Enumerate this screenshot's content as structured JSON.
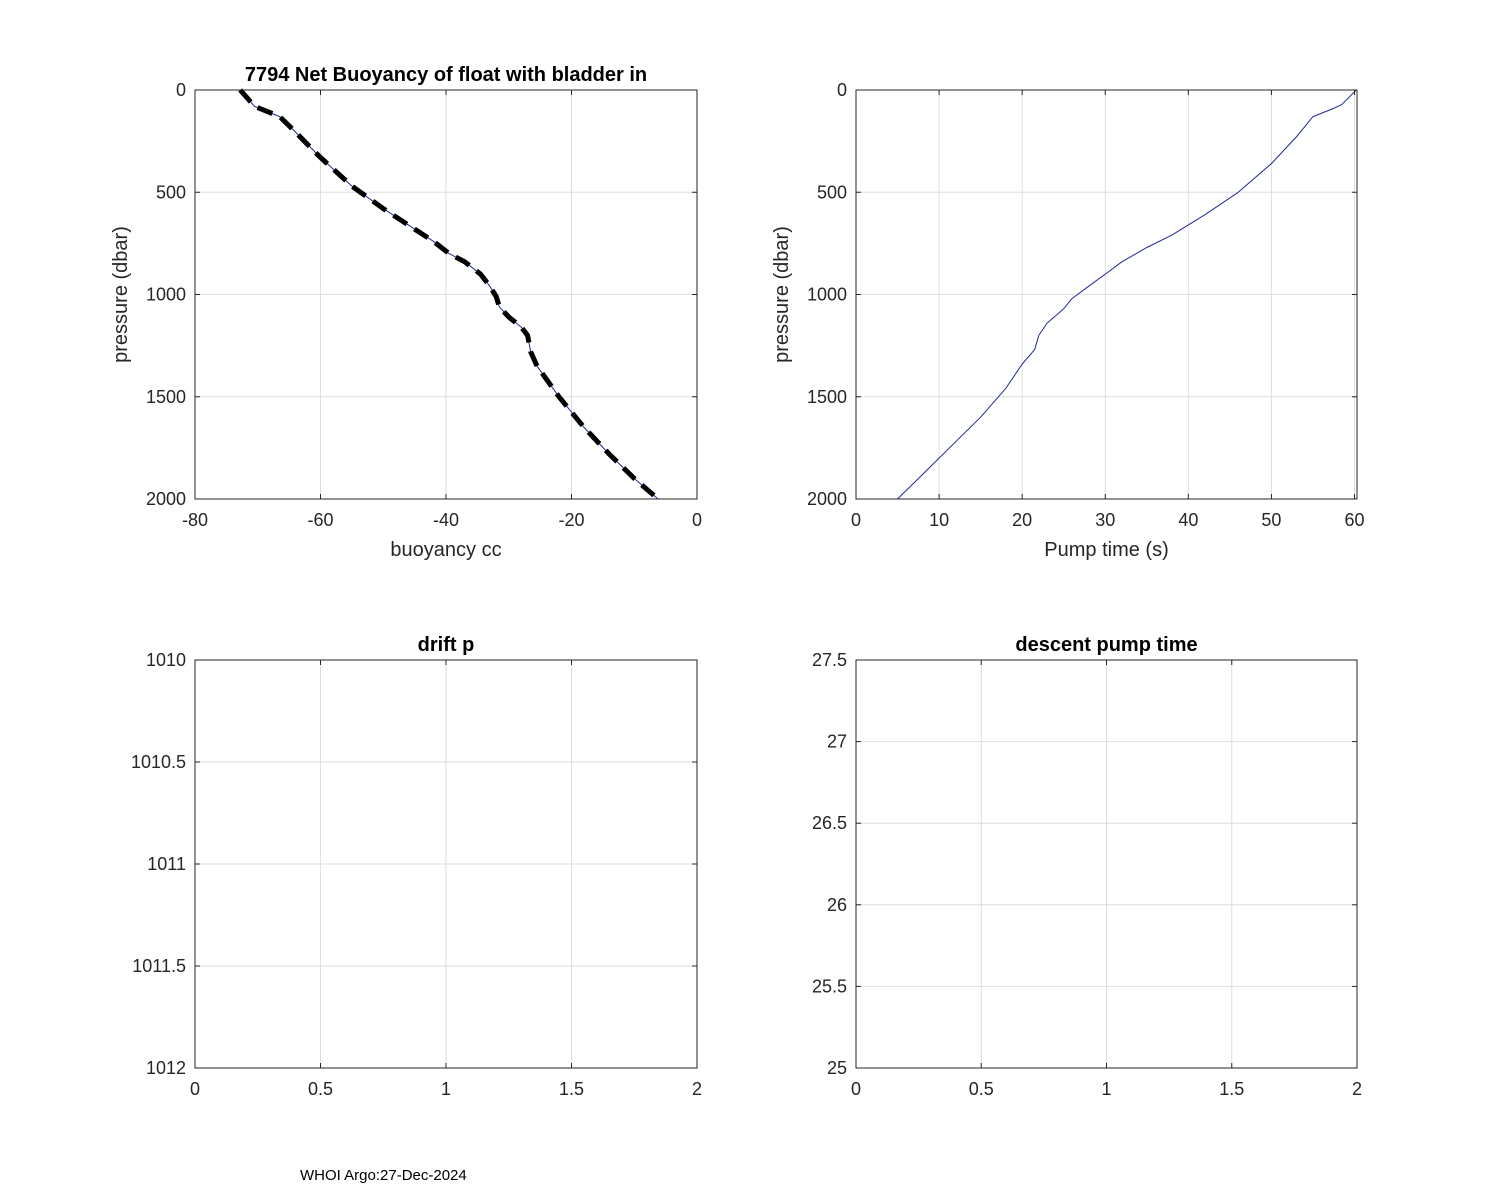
{
  "footer": {
    "text": "WHOI Argo:27-Dec-2024"
  },
  "chart_data": [
    {
      "type": "line",
      "title": "7794 Net Buoyancy of float with bladder in",
      "xlabel": "buoyancy cc",
      "ylabel": "pressure (dbar)",
      "xlim": [
        -80,
        0
      ],
      "ylim": [
        0,
        2000
      ],
      "y_reversed": true,
      "grid": true,
      "xticks": [
        -80,
        -60,
        -40,
        -20,
        0
      ],
      "yticks": [
        0,
        500,
        1000,
        1500,
        2000
      ],
      "series": [
        {
          "style": "thin-blue",
          "x": [
            -72.8,
            -70.5,
            -66.5,
            -64.5,
            -60,
            -55,
            -50,
            -45,
            -42,
            -39.5,
            -37,
            -34.5,
            -33,
            -32,
            -31.5,
            -30,
            -28,
            -27,
            -26.5,
            -25.5,
            -22,
            -18,
            -14,
            -10,
            -6.2
          ],
          "y": [
            0,
            80,
            130,
            190,
            330,
            470,
            580,
            680,
            740,
            800,
            840,
            900,
            960,
            1010,
            1060,
            1110,
            1160,
            1200,
            1280,
            1350,
            1500,
            1650,
            1780,
            1900,
            2000
          ]
        },
        {
          "style": "thick-dashed-black",
          "x": [
            -72.8,
            -70.5,
            -66.5,
            -64.5,
            -60,
            -55,
            -50,
            -45,
            -42,
            -39.5,
            -37,
            -34.5,
            -33,
            -32,
            -31.5,
            -30,
            -28,
            -27,
            -26.5,
            -25.5,
            -22,
            -18,
            -14,
            -10,
            -6.2
          ],
          "y": [
            0,
            80,
            130,
            190,
            330,
            470,
            580,
            680,
            740,
            800,
            840,
            900,
            960,
            1010,
            1060,
            1110,
            1160,
            1200,
            1280,
            1350,
            1500,
            1650,
            1780,
            1900,
            2000
          ]
        }
      ]
    },
    {
      "type": "line",
      "title": "",
      "xlabel": "Pump time (s)",
      "ylabel": "pressure (dbar)",
      "xlim": [
        0,
        60.3
      ],
      "ylim": [
        0,
        2000
      ],
      "y_reversed": true,
      "grid": true,
      "xticks": [
        0,
        10,
        20,
        30,
        40,
        50,
        60
      ],
      "yticks": [
        0,
        500,
        1000,
        1500,
        2000
      ],
      "series": [
        {
          "style": "thin-blue",
          "x": [
            5,
            8,
            12,
            15,
            18,
            20,
            21.5,
            22,
            23,
            25,
            26,
            28,
            30,
            32,
            35,
            38,
            42,
            46,
            50,
            53,
            55,
            57.5,
            58.5,
            60.2
          ],
          "y": [
            2000,
            1880,
            1720,
            1600,
            1460,
            1340,
            1270,
            1200,
            1140,
            1070,
            1020,
            960,
            900,
            840,
            770,
            710,
            610,
            500,
            360,
            230,
            130,
            90,
            70,
            0
          ]
        }
      ]
    },
    {
      "type": "line",
      "title": "drift p",
      "xlabel": "",
      "ylabel": "",
      "xlim": [
        0,
        2
      ],
      "ylim": [
        1010,
        1012
      ],
      "y_reversed": true,
      "grid": true,
      "xticks": [
        0,
        0.5,
        1,
        1.5,
        2
      ],
      "yticks": [
        1010,
        1010.5,
        1011,
        1011.5,
        1012
      ],
      "series": []
    },
    {
      "type": "line",
      "title": "descent pump time",
      "xlabel": "",
      "ylabel": "",
      "xlim": [
        0,
        2
      ],
      "ylim": [
        25,
        27.5
      ],
      "y_reversed": false,
      "grid": true,
      "xticks": [
        0,
        0.5,
        1,
        1.5,
        2
      ],
      "yticks": [
        25,
        25.5,
        26,
        26.5,
        27,
        27.5
      ],
      "series": []
    }
  ]
}
